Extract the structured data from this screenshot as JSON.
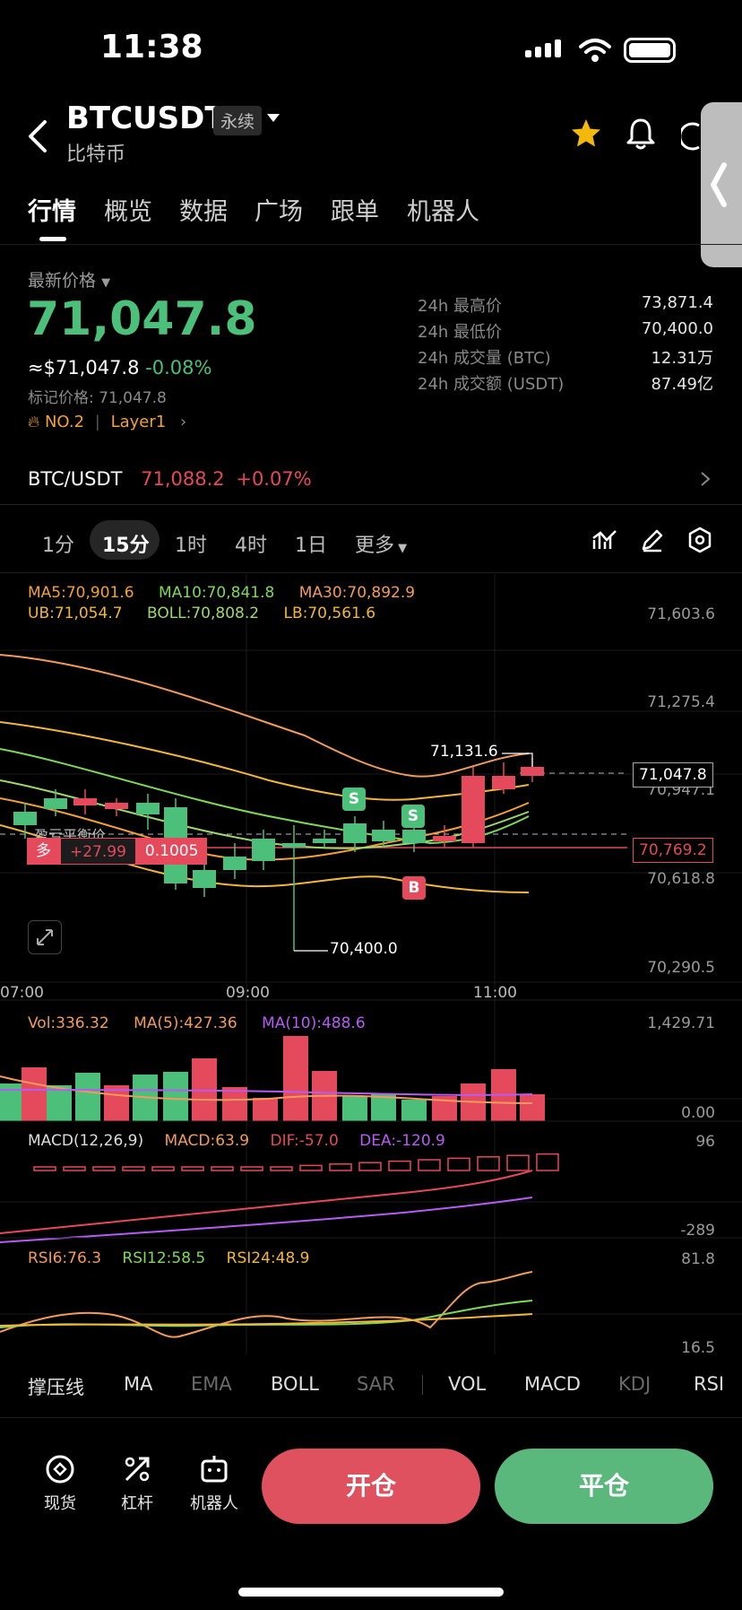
{
  "status_bar": {
    "time": "11:38"
  },
  "header": {
    "symbol": "BTCUSDT",
    "badge": "永续",
    "coin_name": "比特币"
  },
  "tabs": [
    {
      "label": "行情",
      "active": true
    },
    {
      "label": "概览"
    },
    {
      "label": "数据"
    },
    {
      "label": "广场"
    },
    {
      "label": "跟单"
    },
    {
      "label": "机器人"
    }
  ],
  "price": {
    "latest_label": "最新价格",
    "last": "71,047.8",
    "usd": "≈$71,047.8",
    "change": "-0.08%",
    "mark_price": "标记价格: 71,047.8",
    "rank": "NO.2",
    "sector": "Layer1"
  },
  "stats": [
    {
      "label": "24h 最高价",
      "value": "73,871.4"
    },
    {
      "label": "24h 最低价",
      "value": "70,400.0"
    },
    {
      "label": "24h 成交量 (BTC)",
      "value": "12.31万"
    },
    {
      "label": "24h 成交额 (USDT)",
      "value": "87.49亿"
    }
  ],
  "spot": {
    "pair": "BTC/USDT",
    "price": "71,088.2",
    "change": "+0.07%"
  },
  "timeframes": [
    "1分",
    "15分",
    "1时",
    "4时",
    "1日",
    "更多"
  ],
  "active_timeframe": "15分",
  "chart": {
    "ma_legend": {
      "ma5": "MA5:70,901.6",
      "ma10": "MA10:70,841.8",
      "ma30": "MA30:70,892.9"
    },
    "boll_legend": {
      "ub": "UB:71,054.7",
      "boll": "BOLL:70,808.2",
      "lb": "LB:70,561.6"
    },
    "y_ticks": [
      "71,603.6",
      "71,275.4",
      "70,947.1",
      "70,618.8",
      "70,290.5"
    ],
    "x_ticks": [
      "07:00",
      "09:00",
      "11:00"
    ],
    "high_marker": "71,131.6",
    "low_marker": "70,400.0",
    "last_price_tag": "71,047.8",
    "position_line_tag": "70,769.2",
    "position_label": "多",
    "position_pnl": "+27.99",
    "position_size": "0.1005",
    "breakeven_label": "盈亏平衡价",
    "markers": [
      "S",
      "S",
      "B"
    ]
  },
  "volume": {
    "vol": "Vol:336.32",
    "ma5": "MA(5):427.36",
    "ma10": "MA(10):488.6",
    "max": "1,429.71",
    "min": "0.00"
  },
  "macd": {
    "title": "MACD(12,26,9)",
    "macd": "MACD:63.9",
    "dif": "DIF:-57.0",
    "dea": "DEA:-120.9",
    "max": "96",
    "min": "-289"
  },
  "rsi": {
    "rsi6": "RSI6:76.3",
    "rsi12": "RSI12:58.5",
    "rsi24": "RSI24:48.9",
    "max": "81.8",
    "min": "16.5"
  },
  "indicator_tabs": [
    {
      "label": "撑压线",
      "dim": false
    },
    {
      "label": "MA",
      "dim": false
    },
    {
      "label": "EMA",
      "dim": true
    },
    {
      "label": "BOLL",
      "dim": false
    },
    {
      "label": "SAR",
      "dim": true
    },
    {
      "label": "VOL",
      "dim": false
    },
    {
      "label": "MACD",
      "dim": false
    },
    {
      "label": "KDJ",
      "dim": true
    },
    {
      "label": "RSI",
      "dim": false
    }
  ],
  "bottom_nav": {
    "spot": "现货",
    "leverage": "杠杆",
    "bot": "机器人",
    "open": "开仓",
    "close": "平仓"
  },
  "colors": {
    "up": "#4cc07a",
    "down": "#e5495c",
    "accent": "#f2a037"
  }
}
